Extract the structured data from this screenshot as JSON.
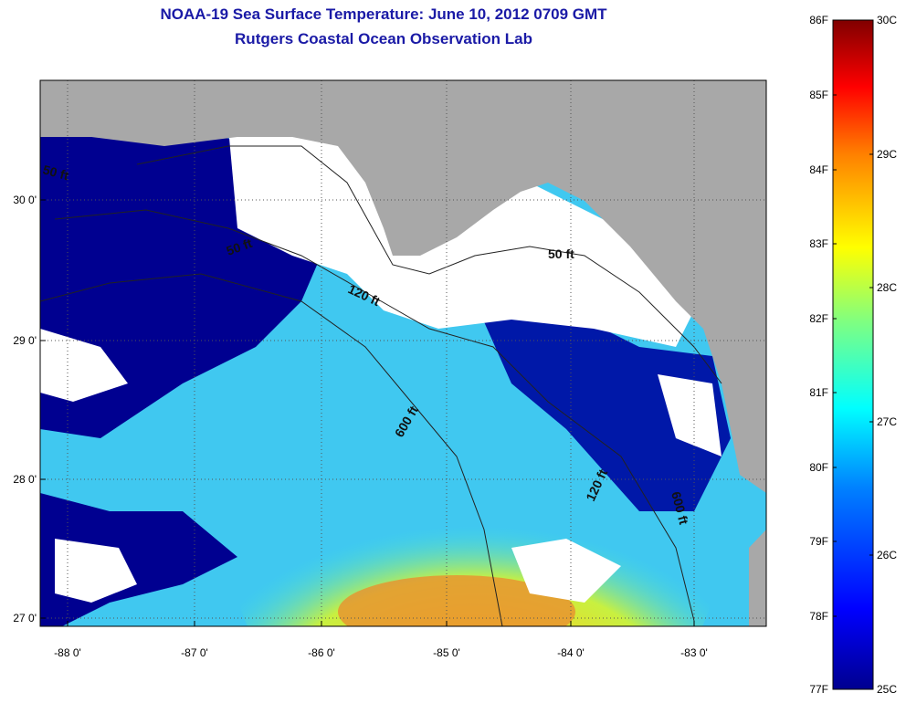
{
  "header": {
    "title": "NOAA-19 Sea Surface Temperature:  June 10, 2012 0709 GMT",
    "subtitle": "Rutgers Coastal Ocean Observation Lab"
  },
  "map": {
    "lon_ticks": [
      "-88 0'",
      "-87 0'",
      "-86 0'",
      "-85 0'",
      "-84 0'",
      "-83 0'"
    ],
    "lat_ticks": [
      "30 0'",
      "29 0'",
      "28 0'",
      "27 0'"
    ],
    "contour_labels": [
      "50 ft",
      "120 ft",
      "600 ft",
      "50 ft",
      "120 ft",
      "600 ft",
      "50 ft"
    ],
    "colors": {
      "land": "#a8a8a8",
      "cloud": "#ffffff",
      "grid": "#555555"
    }
  },
  "colorbar": {
    "fahrenheit_labels": [
      "86F",
      "85F",
      "84F",
      "83F",
      "82F",
      "81F",
      "80F",
      "79F",
      "78F",
      "77F"
    ],
    "celsius_labels": [
      "30C",
      "29C",
      "28C",
      "27C",
      "26C",
      "25C"
    ],
    "colors": [
      "#00008f",
      "#0000ff",
      "#0080ff",
      "#00ffff",
      "#80ff80",
      "#ffff00",
      "#ff8000",
      "#ff0000",
      "#800000"
    ]
  }
}
